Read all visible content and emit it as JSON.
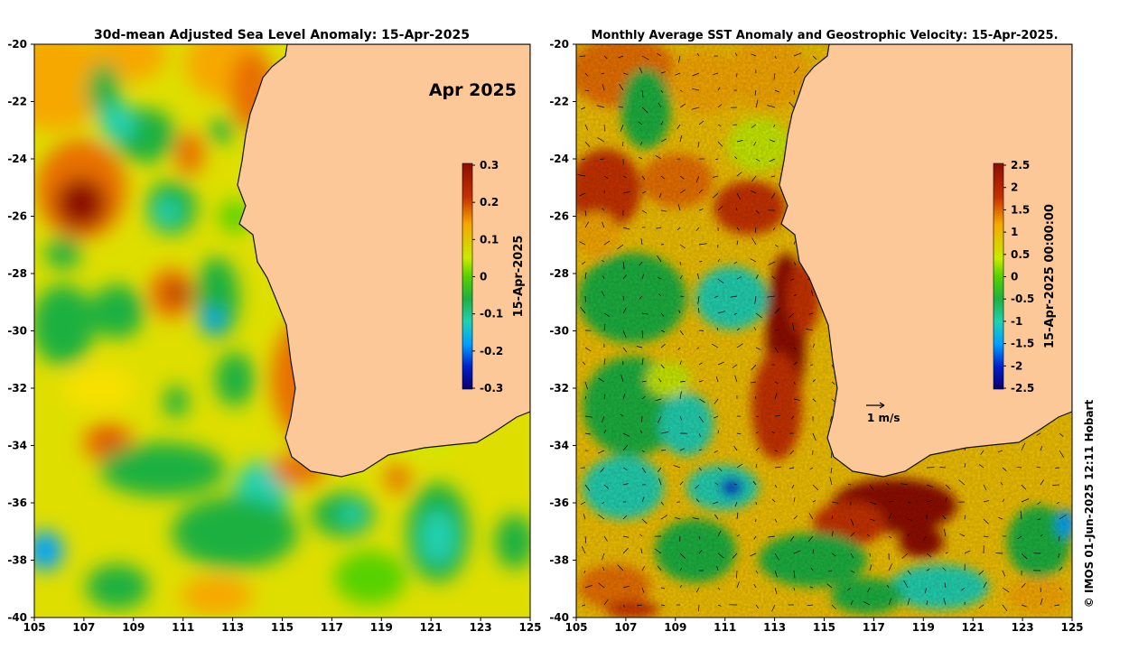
{
  "left_panel": {
    "title": "30d-mean Adjusted Sea Level Anomaly: 15-Apr-2025",
    "inset_label": "Apr 2025",
    "colorbar": {
      "ticks": [
        "0.3",
        "0.2",
        "0.1",
        "0",
        "-0.1",
        "-0.2",
        "-0.3"
      ],
      "label": "15-Apr-2025",
      "min": -0.3,
      "max": 0.3
    },
    "x_ticks": [
      "105",
      "107",
      "109",
      "111",
      "113",
      "115",
      "117",
      "119",
      "121",
      "123",
      "125"
    ],
    "y_ticks": [
      "-20",
      "-22",
      "-24",
      "-26",
      "-28",
      "-30",
      "-32",
      "-34",
      "-36",
      "-38",
      "-40"
    ]
  },
  "right_panel": {
    "title": "Monthly Average SST Anomaly  and Geostrophic Velocity: 15-Apr-2025.",
    "velocity_scale_label": "1 m/s",
    "colorbar": {
      "ticks": [
        "2.5",
        "2",
        "1.5",
        "1",
        "0.5",
        "0",
        "-0.5",
        "-1",
        "-1.5",
        "-2",
        "-2.5"
      ],
      "label": "15-Apr-2025 00:00:00",
      "min": -2.5,
      "max": 2.5
    },
    "x_ticks": [
      "105",
      "107",
      "109",
      "111",
      "113",
      "115",
      "117",
      "119",
      "121",
      "123",
      "125"
    ],
    "y_ticks": [
      "-20",
      "-22",
      "-24",
      "-26",
      "-28",
      "-30",
      "-32",
      "-34",
      "-36",
      "-38",
      "-40"
    ]
  },
  "credit": "© IMOS 01-Jun-2025 12:11 Hobart",
  "colors": {
    "land": "#fdc898",
    "coast": "#111111",
    "colormap": [
      "#08006e",
      "#0020c8",
      "#00a0ff",
      "#22d0b0",
      "#1fb040",
      "#56d200",
      "#c8ea00",
      "#f6e000",
      "#f6a800",
      "#e87000",
      "#c63000",
      "#8e0e00"
    ]
  }
}
